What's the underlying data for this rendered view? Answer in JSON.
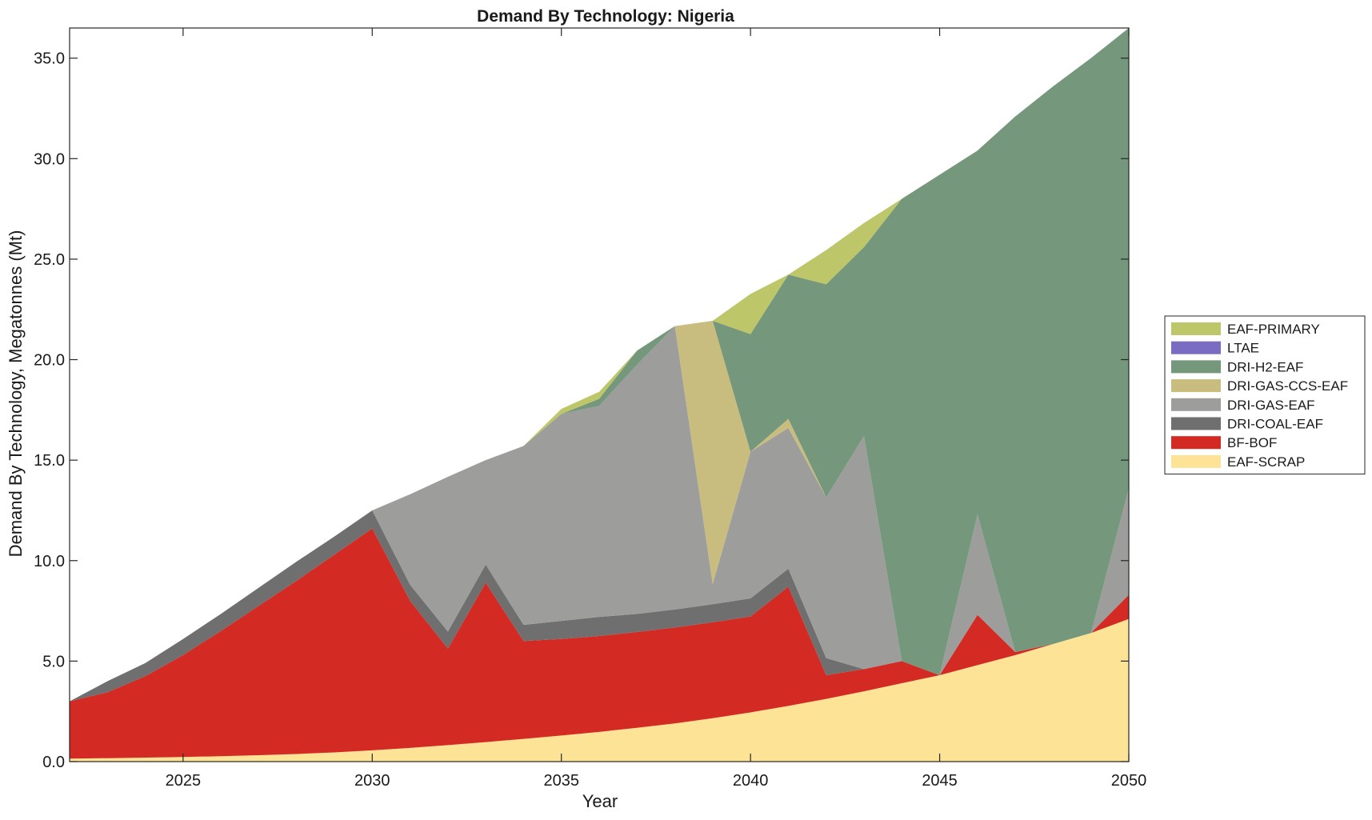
{
  "chart_data": {
    "type": "area",
    "title": "Demand By Technology: Nigeria",
    "xlabel": "Year",
    "ylabel": "Demand By Technology, Megatonnes (Mt)",
    "xlim": [
      2022,
      2050
    ],
    "ylim": [
      0,
      36.5
    ],
    "xticks": [
      2025,
      2030,
      2035,
      2040,
      2045,
      2050
    ],
    "yticks": [
      "0.0",
      "5.0",
      "10.0",
      "15.0",
      "20.0",
      "25.0",
      "30.0",
      "35.0"
    ],
    "grid": false,
    "stacked": true,
    "legend_position": "right",
    "x": [
      2022,
      2023,
      2024,
      2025,
      2026,
      2027,
      2028,
      2029,
      2030,
      2031,
      2032,
      2033,
      2034,
      2035,
      2036,
      2037,
      2038,
      2039,
      2040,
      2041,
      2042,
      2043,
      2044,
      2045,
      2046,
      2047,
      2048,
      2049,
      2050
    ],
    "series": [
      {
        "name": "EAF-SCRAP",
        "color": "#fde396",
        "values": [
          0.15,
          0.17,
          0.2,
          0.23,
          0.27,
          0.32,
          0.38,
          0.46,
          0.56,
          0.68,
          0.82,
          0.97,
          1.13,
          1.3,
          1.48,
          1.68,
          1.9,
          2.16,
          2.45,
          2.77,
          3.12,
          3.5,
          3.9,
          4.3,
          4.8,
          5.3,
          5.85,
          6.4,
          7.1
        ]
      },
      {
        "name": "BF-BOF",
        "color": "#d42a24",
        "values": [
          2.85,
          3.28,
          4.05,
          5.07,
          6.23,
          7.43,
          8.62,
          9.84,
          11.04,
          7.32,
          4.8,
          7.93,
          4.87,
          4.8,
          4.77,
          4.77,
          4.77,
          4.77,
          4.77,
          5.93,
          1.18,
          1.1,
          1.1,
          0.0,
          2.5,
          0.15,
          0.0,
          0.0,
          1.2
        ]
      },
      {
        "name": "DRI-COAL-EAF",
        "color": "#6f6f6f",
        "values": [
          0.0,
          0.55,
          0.65,
          0.8,
          0.85,
          0.9,
          0.95,
          0.9,
          0.9,
          0.8,
          0.85,
          0.9,
          0.8,
          0.9,
          0.95,
          0.9,
          0.9,
          0.9,
          0.9,
          0.9,
          0.85,
          0.0,
          0.0,
          0.0,
          0.0,
          0.0,
          0.0,
          0.0,
          0.0
        ]
      },
      {
        "name": "DRI-GAS-EAF",
        "color": "#9d9d9c",
        "values": [
          0.0,
          0.0,
          0.0,
          0.0,
          0.0,
          0.0,
          0.0,
          0.0,
          0.0,
          4.5,
          7.7,
          5.2,
          8.9,
          10.3,
          10.5,
          12.4,
          14.1,
          1.0,
          7.3,
          7.0,
          8.0,
          11.6,
          0.0,
          0.0,
          5.0,
          0.0,
          0.0,
          0.0,
          5.3
        ]
      },
      {
        "name": "DRI-GAS-CCS-EAF",
        "color": "#c8bd7e",
        "values": [
          0.0,
          0.0,
          0.0,
          0.0,
          0.0,
          0.0,
          0.0,
          0.0,
          0.0,
          0.0,
          0.0,
          0.0,
          0.0,
          0.0,
          0.0,
          0.0,
          0.0,
          13.1,
          0.0,
          0.45,
          0.0,
          0.0,
          0.0,
          0.0,
          0.0,
          0.0,
          0.0,
          0.0,
          0.0
        ]
      },
      {
        "name": "DRI-H2-EAF",
        "color": "#75977b",
        "values": [
          0.0,
          0.0,
          0.0,
          0.0,
          0.0,
          0.0,
          0.0,
          0.0,
          0.0,
          0.0,
          0.0,
          0.0,
          0.0,
          0.0,
          0.35,
          0.7,
          0.0,
          0.0,
          5.85,
          7.18,
          10.6,
          9.4,
          23.0,
          24.9,
          18.1,
          26.65,
          27.75,
          28.6,
          22.9
        ]
      },
      {
        "name": "LTAE",
        "color": "#7a6cc0",
        "values": [
          0,
          0,
          0,
          0,
          0,
          0,
          0,
          0,
          0,
          0,
          0,
          0,
          0,
          0,
          0,
          0,
          0,
          0,
          0,
          0,
          0,
          0,
          0,
          0,
          0,
          0,
          0,
          0,
          0
        ]
      },
      {
        "name": "EAF-PRIMARY",
        "color": "#bec66a",
        "values": [
          0.0,
          0.0,
          0.0,
          0.0,
          0.0,
          0.0,
          0.0,
          0.0,
          0.0,
          0.0,
          0.0,
          0.0,
          0.0,
          0.25,
          0.35,
          0.0,
          0.0,
          0.0,
          2.0,
          0.0,
          1.7,
          1.2,
          0.0,
          0.0,
          0.0,
          0.0,
          0.0,
          0.0,
          0.0
        ]
      }
    ]
  }
}
